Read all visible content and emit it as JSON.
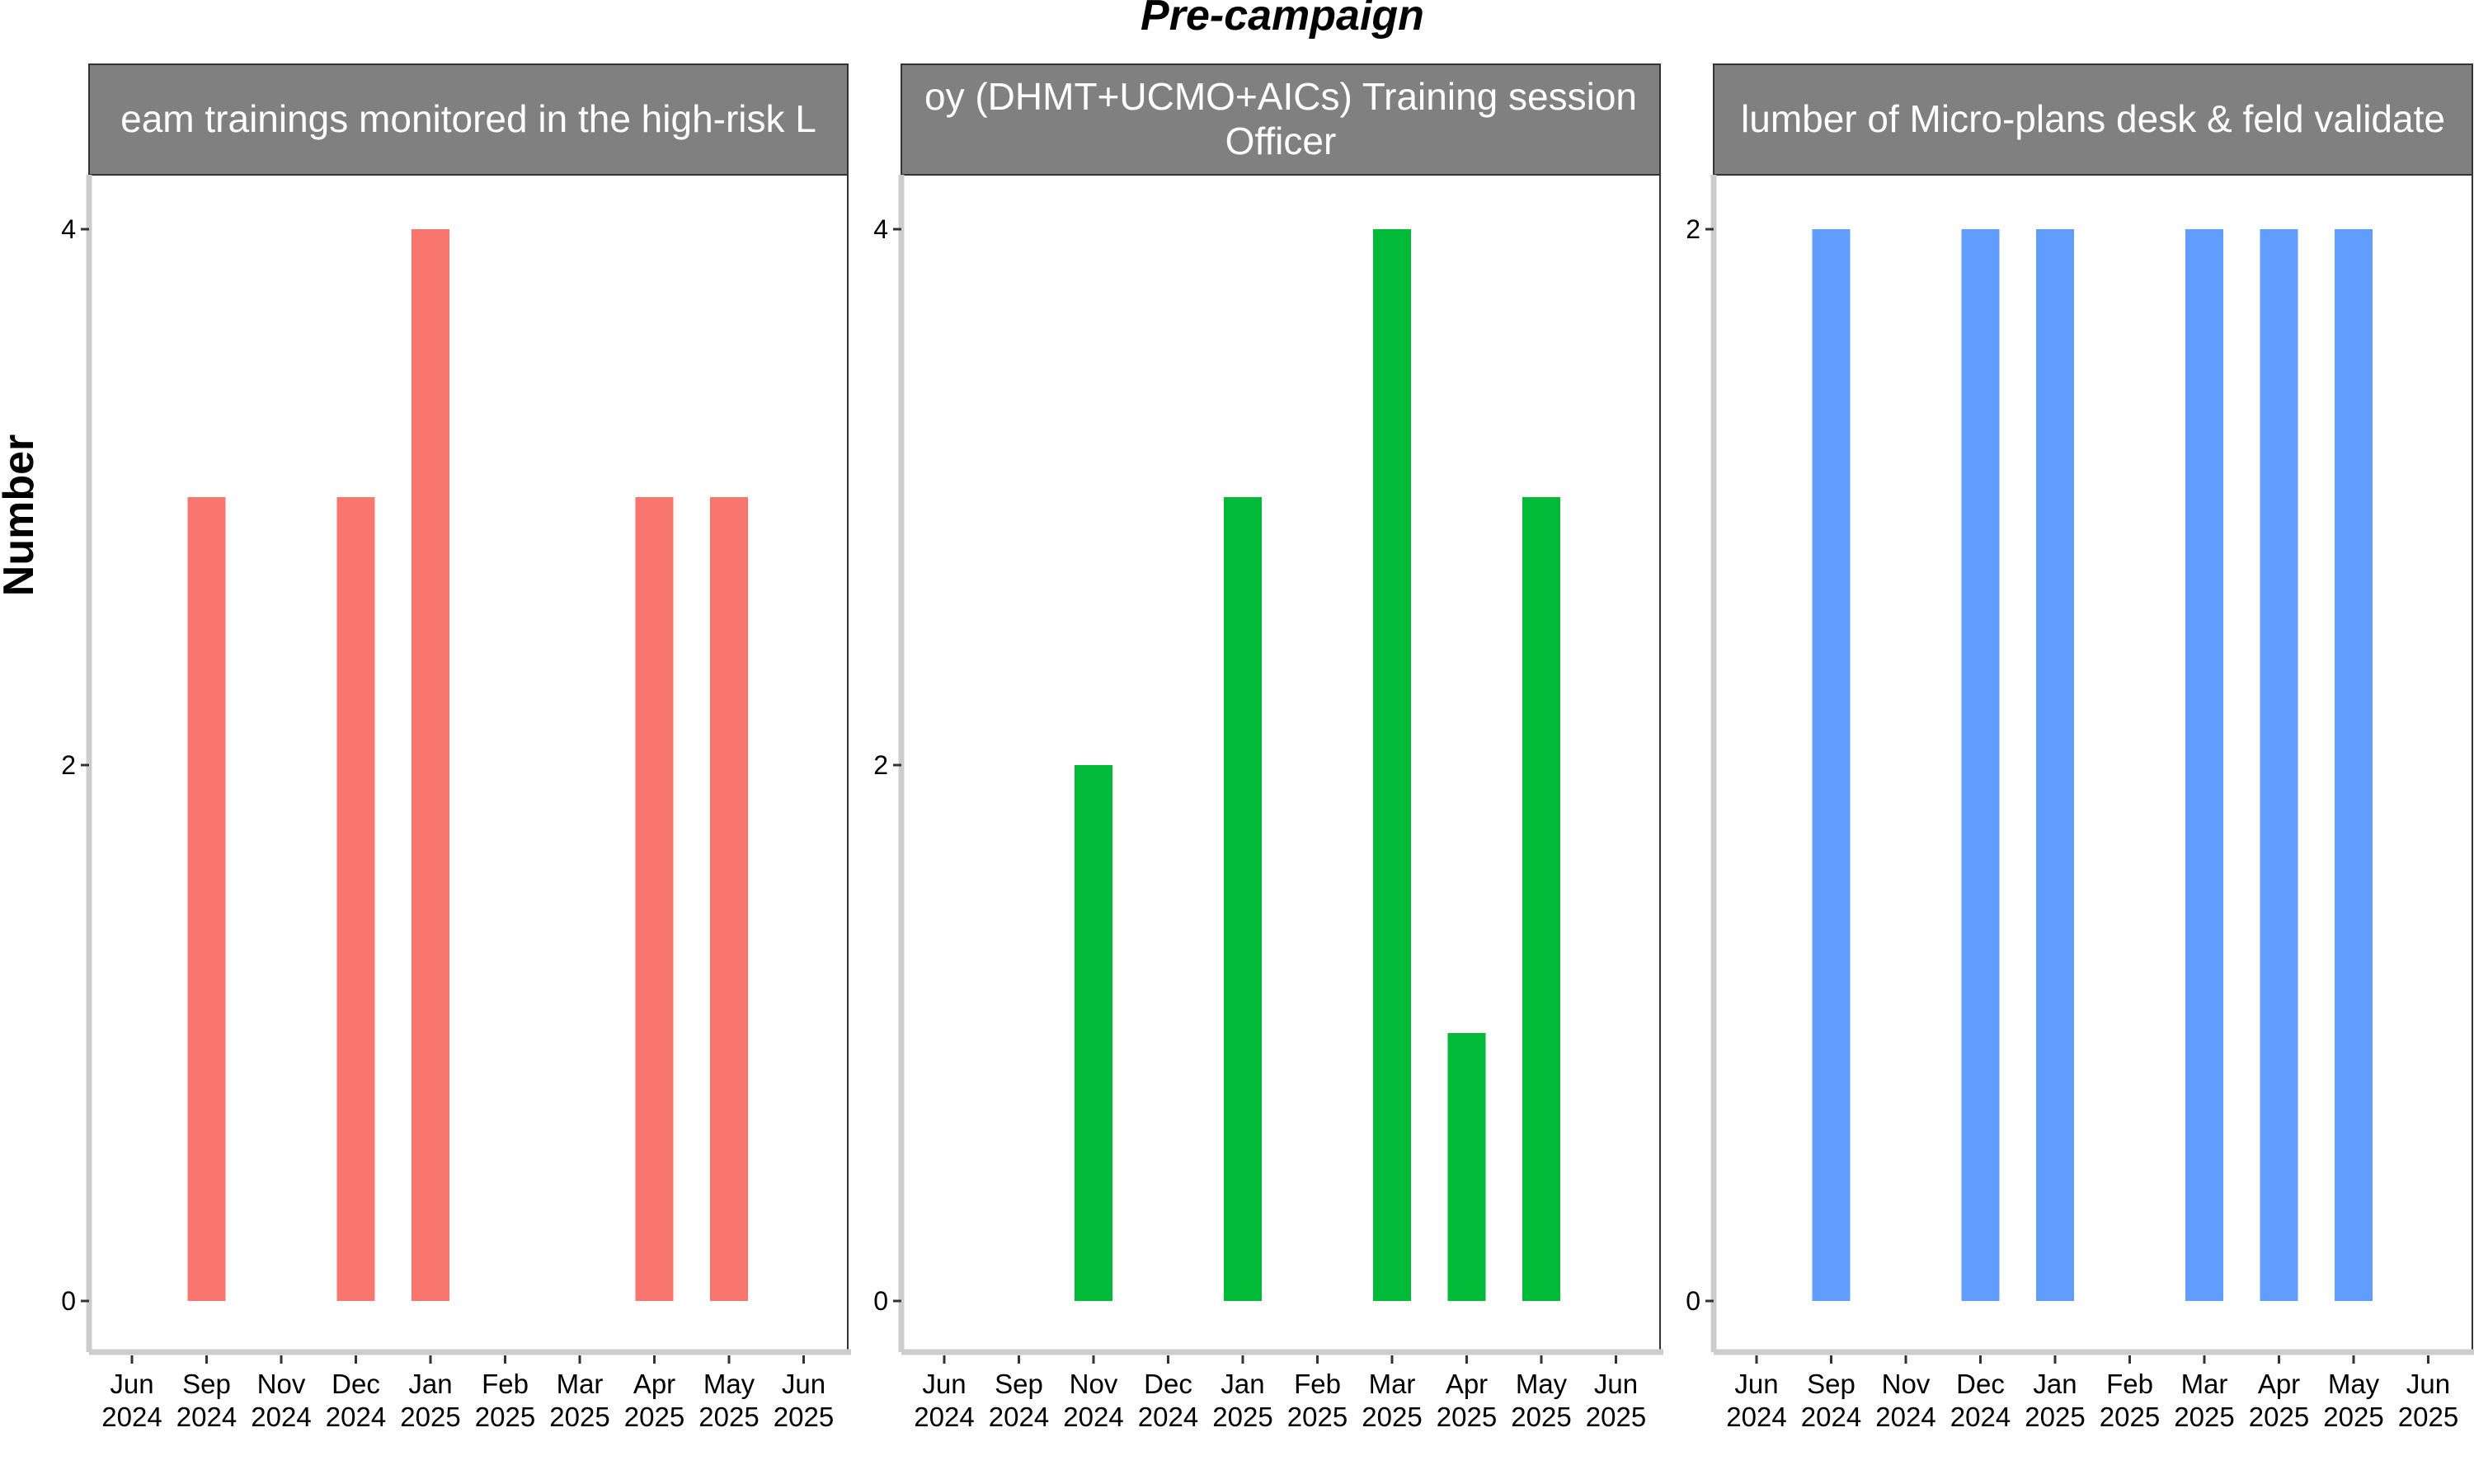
{
  "chart_data": {
    "type": "bar",
    "title": "Pre-campaign",
    "ylabel": "Number",
    "xlabel": "",
    "colors": {
      "strip_bg": "#808080",
      "strip_text": "#ffffff",
      "axis_line": "#cccccc"
    },
    "x_ticks": [
      {
        "month": "Jun",
        "year": "2024"
      },
      {
        "month": "Sep",
        "year": "2024"
      },
      {
        "month": "Nov",
        "year": "2024"
      },
      {
        "month": "Dec",
        "year": "2024"
      },
      {
        "month": "Jan",
        "year": "2025"
      },
      {
        "month": "Feb",
        "year": "2025"
      },
      {
        "month": "Mar",
        "year": "2025"
      },
      {
        "month": "Apr",
        "year": "2025"
      },
      {
        "month": "May",
        "year": "2025"
      },
      {
        "month": "Jun",
        "year": "2025"
      }
    ],
    "panels": [
      {
        "strip_lines": [
          "eam trainings monitored in the high-risk L"
        ],
        "color": "#F8766D",
        "ylim": [
          0,
          4.2
        ],
        "y_ticks": [
          0,
          2,
          4
        ],
        "values": [
          0,
          3,
          0,
          3,
          4,
          0,
          0,
          3,
          3,
          0
        ]
      },
      {
        "strip_lines": [
          "oy (DHMT+UCMO+AICs) Training session",
          "Officer"
        ],
        "color": "#00BA38",
        "ylim": [
          0,
          4.2
        ],
        "y_ticks": [
          0,
          2,
          4
        ],
        "values": [
          0,
          0,
          2,
          0,
          3,
          0,
          4,
          1,
          3,
          0
        ]
      },
      {
        "strip_lines": [
          "lumber of Micro-plans desk & feld validate"
        ],
        "color": "#619CFF",
        "ylim": [
          0,
          2.1
        ],
        "y_ticks": [
          0,
          2
        ],
        "values": [
          0,
          2,
          0,
          2,
          2,
          0,
          2,
          2,
          2,
          0
        ]
      }
    ]
  }
}
